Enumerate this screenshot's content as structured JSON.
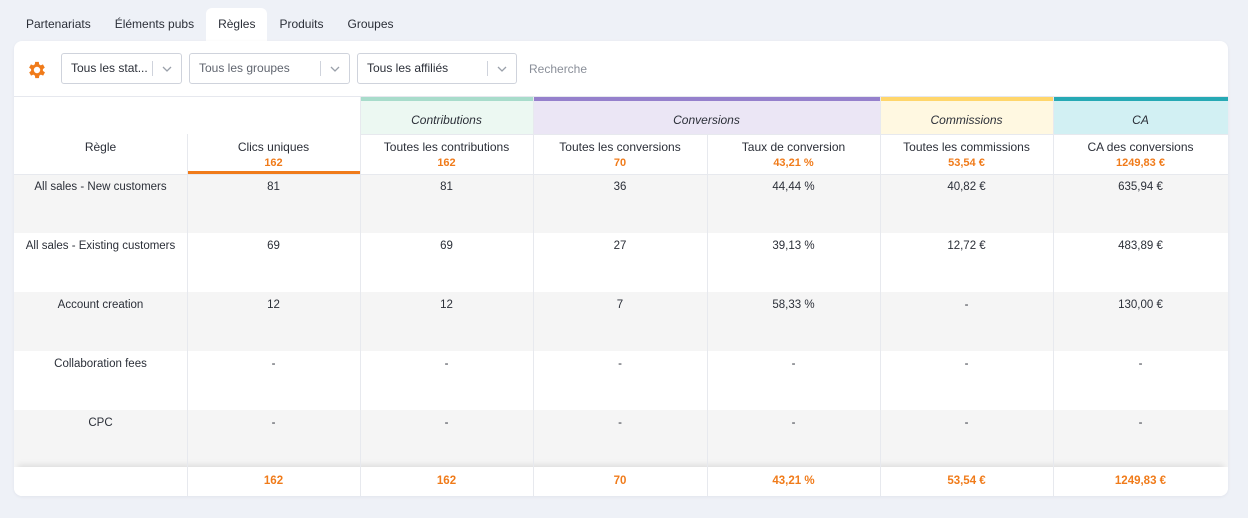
{
  "tabs": [
    {
      "label": "Partenariats",
      "active": false
    },
    {
      "label": "Éléments pubs",
      "active": false
    },
    {
      "label": "Règles",
      "active": true
    },
    {
      "label": "Produits",
      "active": false
    },
    {
      "label": "Groupes",
      "active": false
    }
  ],
  "filters": {
    "status": "Tous les stat...",
    "groups": "Tous les groupes",
    "affiliates": "Tous les affiliés",
    "search_placeholder": "Recherche"
  },
  "colors": {
    "accent": "#f07b1a",
    "contributions": "#a8dccb",
    "contributions_bg": "#ecf8f2",
    "conversions": "#9580cc",
    "conversions_bg": "#ebe6f5",
    "commissions": "#ffd66b",
    "commissions_bg": "#fff8e1",
    "ca": "#26a9b4",
    "ca_bg": "#d2f0f3"
  },
  "groups": {
    "contributions": "Contributions",
    "conversions": "Conversions",
    "commissions": "Commissions",
    "ca": "CA"
  },
  "columns": [
    {
      "label": "Règle",
      "total": ""
    },
    {
      "label": "Clics uniques",
      "total": "162"
    },
    {
      "label": "Toutes les contributions",
      "total": "162"
    },
    {
      "label": "Toutes les conversions",
      "total": "70"
    },
    {
      "label": "Taux de conversion",
      "total": "43,21 %"
    },
    {
      "label": "Toutes les commissions",
      "total": "53,54 €"
    },
    {
      "label": "CA des conversions",
      "total": "1249,83 €"
    }
  ],
  "rows": [
    [
      "All sales - New customers",
      "81",
      "81",
      "36",
      "44,44 %",
      "40,82 €",
      "635,94 €"
    ],
    [
      "All sales - Existing customers",
      "69",
      "69",
      "27",
      "39,13 %",
      "12,72 €",
      "483,89 €"
    ],
    [
      "Account creation",
      "12",
      "12",
      "7",
      "58,33 %",
      "-",
      "130,00 €"
    ],
    [
      "Collaboration fees",
      "-",
      "-",
      "-",
      "-",
      "-",
      "-"
    ],
    [
      "CPC",
      "-",
      "-",
      "-",
      "-",
      "-",
      "-"
    ]
  ],
  "footer": [
    "",
    "162",
    "162",
    "70",
    "43,21 %",
    "53,54 €",
    "1249,83 €"
  ]
}
